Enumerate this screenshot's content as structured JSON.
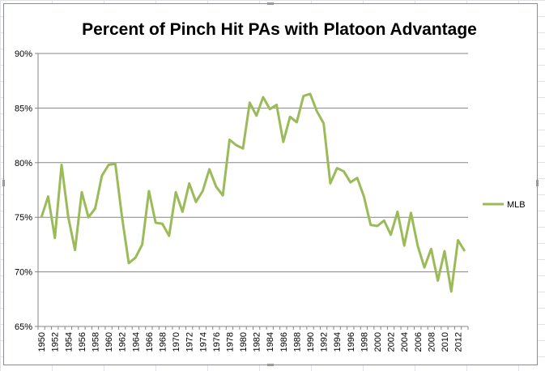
{
  "chart_data": {
    "type": "line",
    "title": "Percent of Pinch Hit PAs with Platoon Advantage",
    "xlabel": "",
    "ylabel": "",
    "ylim": [
      65,
      90
    ],
    "y_ticks": [
      "65%",
      "70%",
      "75%",
      "80%",
      "85%",
      "90%"
    ],
    "y_tick_values": [
      65,
      70,
      75,
      80,
      85,
      90
    ],
    "x_tick_labels": [
      "1950",
      "1952",
      "1954",
      "1956",
      "1958",
      "1960",
      "1962",
      "1964",
      "1966",
      "1968",
      "1970",
      "1972",
      "1974",
      "1976",
      "1978",
      "1980",
      "1982",
      "1984",
      "1986",
      "1988",
      "1990",
      "1992",
      "1994",
      "1996",
      "1998",
      "2000",
      "2002",
      "2004",
      "2006",
      "2008",
      "2010",
      "2012"
    ],
    "grid": true,
    "legend": "right",
    "x": [
      1950,
      1951,
      1952,
      1953,
      1954,
      1955,
      1956,
      1957,
      1958,
      1959,
      1960,
      1961,
      1962,
      1963,
      1964,
      1965,
      1966,
      1967,
      1968,
      1969,
      1970,
      1971,
      1972,
      1973,
      1974,
      1975,
      1976,
      1977,
      1978,
      1979,
      1980,
      1981,
      1982,
      1983,
      1984,
      1985,
      1986,
      1987,
      1988,
      1989,
      1990,
      1991,
      1992,
      1993,
      1994,
      1995,
      1996,
      1997,
      1998,
      1999,
      2000,
      2001,
      2002,
      2003,
      2004,
      2005,
      2006,
      2007,
      2008,
      2009,
      2010,
      2011,
      2012,
      2013
    ],
    "series": [
      {
        "name": "MLB",
        "color": "#9bbb59",
        "values": [
          75.0,
          76.9,
          73.1,
          79.8,
          75.0,
          72.0,
          77.3,
          75.0,
          75.8,
          78.8,
          79.8,
          79.9,
          75.0,
          70.8,
          71.3,
          72.5,
          77.4,
          74.5,
          74.4,
          73.3,
          77.3,
          75.5,
          78.1,
          76.4,
          77.4,
          79.4,
          77.8,
          77.0,
          82.1,
          81.6,
          81.3,
          85.5,
          84.3,
          86.0,
          84.9,
          85.3,
          81.9,
          84.2,
          83.7,
          86.1,
          86.3,
          84.7,
          83.6,
          78.1,
          79.5,
          79.2,
          78.2,
          78.6,
          76.9,
          74.3,
          74.2,
          74.7,
          73.4,
          75.5,
          72.4,
          75.4,
          72.4,
          70.4,
          72.1,
          69.2,
          71.9,
          68.2,
          72.9,
          71.9
        ]
      }
    ]
  }
}
